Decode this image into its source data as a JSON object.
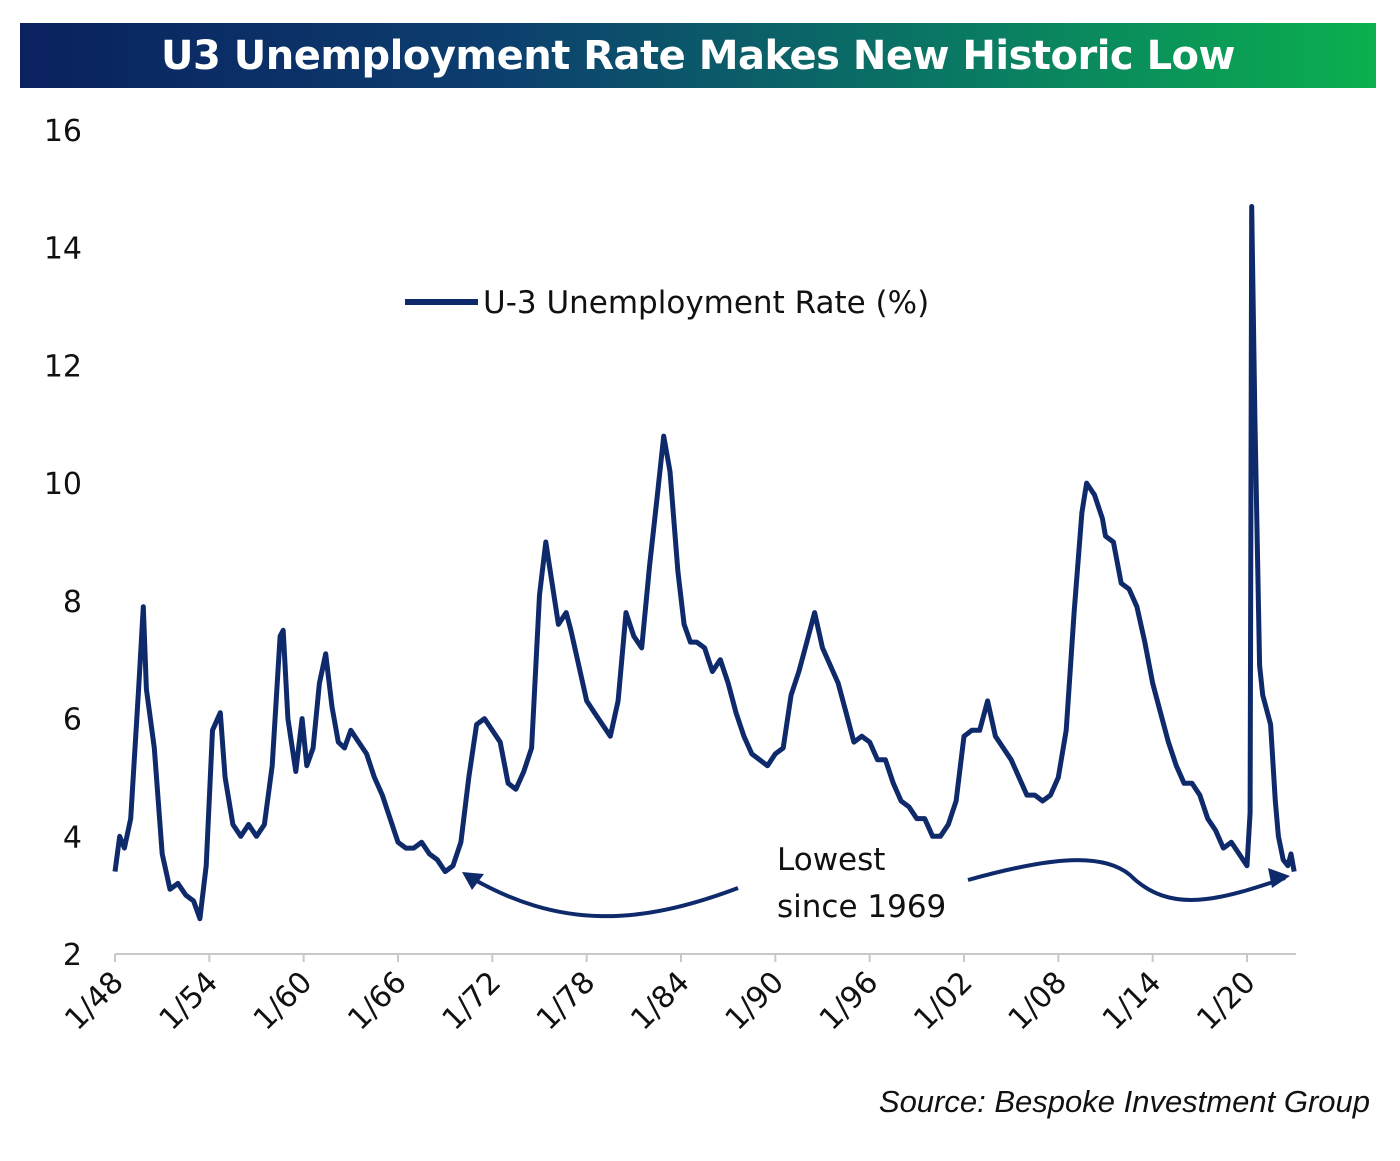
{
  "chart_data": {
    "type": "line",
    "title": "U3 Unemployment Rate Makes New Historic Low",
    "xlabel": "",
    "ylabel": "",
    "ylim": [
      2,
      16
    ],
    "xlim": [
      1948,
      2023
    ],
    "yticks": [
      "2",
      "4",
      "6",
      "8",
      "10",
      "12",
      "14",
      "16"
    ],
    "xticks": [
      {
        "label": "1/48",
        "year": 1948
      },
      {
        "label": "1/54",
        "year": 1954
      },
      {
        "label": "1/60",
        "year": 1960
      },
      {
        "label": "1/66",
        "year": 1966
      },
      {
        "label": "1/72",
        "year": 1972
      },
      {
        "label": "1/78",
        "year": 1978
      },
      {
        "label": "1/84",
        "year": 1984
      },
      {
        "label": "1/90",
        "year": 1990
      },
      {
        "label": "1/96",
        "year": 1996
      },
      {
        "label": "1/02",
        "year": 2002
      },
      {
        "label": "1/08",
        "year": 2008
      },
      {
        "label": "1/14",
        "year": 2014
      },
      {
        "label": "1/20",
        "year": 2020
      }
    ],
    "grid": false,
    "legend": {
      "position": "top-center",
      "entries": [
        "U-3 Unemployment Rate (%)"
      ]
    },
    "series": [
      {
        "name": "U-3 Unemployment Rate (%)",
        "color": "#0f2a6b",
        "x": [
          1948.0,
          1948.3,
          1948.6,
          1949.0,
          1949.5,
          1949.8,
          1950.0,
          1950.5,
          1951.0,
          1951.5,
          1952.0,
          1952.5,
          1953.0,
          1953.4,
          1953.8,
          1954.2,
          1954.7,
          1955.0,
          1955.5,
          1956.0,
          1956.5,
          1957.0,
          1957.5,
          1958.0,
          1958.5,
          1958.7,
          1959.0,
          1959.5,
          1959.9,
          1960.2,
          1960.6,
          1961.0,
          1961.4,
          1961.8,
          1962.2,
          1962.6,
          1963.0,
          1963.5,
          1964.0,
          1964.5,
          1965.0,
          1965.5,
          1966.0,
          1966.5,
          1967.0,
          1967.5,
          1968.0,
          1968.5,
          1969.0,
          1969.5,
          1970.0,
          1970.5,
          1971.0,
          1971.5,
          1972.0,
          1972.5,
          1973.0,
          1973.5,
          1974.0,
          1974.5,
          1975.0,
          1975.4,
          1975.8,
          1976.2,
          1976.7,
          1977.0,
          1977.5,
          1978.0,
          1978.5,
          1979.0,
          1979.5,
          1980.0,
          1980.5,
          1981.0,
          1981.5,
          1982.0,
          1982.5,
          1982.9,
          1983.3,
          1983.8,
          1984.2,
          1984.6,
          1985.0,
          1985.5,
          1986.0,
          1986.5,
          1987.0,
          1987.5,
          1988.0,
          1988.5,
          1989.0,
          1989.5,
          1990.0,
          1990.5,
          1991.0,
          1991.5,
          1992.0,
          1992.5,
          1993.0,
          1993.5,
          1994.0,
          1994.5,
          1995.0,
          1995.5,
          1996.0,
          1996.5,
          1997.0,
          1997.5,
          1998.0,
          1998.5,
          1999.0,
          1999.5,
          2000.0,
          2000.5,
          2001.0,
          2001.5,
          2002.0,
          2002.5,
          2003.0,
          2003.5,
          2004.0,
          2004.5,
          2005.0,
          2005.5,
          2006.0,
          2006.5,
          2007.0,
          2007.5,
          2008.0,
          2008.5,
          2009.0,
          2009.5,
          2009.8,
          2010.3,
          2010.8,
          2011.0,
          2011.5,
          2012.0,
          2012.5,
          2013.0,
          2013.5,
          2014.0,
          2014.5,
          2015.0,
          2015.5,
          2016.0,
          2016.5,
          2017.0,
          2017.5,
          2018.0,
          2018.5,
          2019.0,
          2019.5,
          2020.0,
          2020.2,
          2020.3,
          2020.5,
          2020.8,
          2021.0,
          2021.5,
          2021.8,
          2022.0,
          2022.3,
          2022.6,
          2022.8,
          2023.0
        ],
        "values": [
          3.4,
          4.0,
          3.8,
          4.3,
          6.5,
          7.9,
          6.5,
          5.5,
          3.7,
          3.1,
          3.2,
          3.0,
          2.9,
          2.6,
          3.5,
          5.8,
          6.1,
          5.0,
          4.2,
          4.0,
          4.2,
          4.0,
          4.2,
          5.2,
          7.4,
          7.5,
          6.0,
          5.1,
          6.0,
          5.2,
          5.5,
          6.6,
          7.1,
          6.2,
          5.6,
          5.5,
          5.8,
          5.6,
          5.4,
          5.0,
          4.7,
          4.3,
          3.9,
          3.8,
          3.8,
          3.9,
          3.7,
          3.6,
          3.4,
          3.5,
          3.9,
          5.0,
          5.9,
          6.0,
          5.8,
          5.6,
          4.9,
          4.8,
          5.1,
          5.5,
          8.1,
          9.0,
          8.3,
          7.6,
          7.8,
          7.5,
          6.9,
          6.3,
          6.1,
          5.9,
          5.7,
          6.3,
          7.8,
          7.4,
          7.2,
          8.6,
          9.8,
          10.8,
          10.2,
          8.5,
          7.6,
          7.3,
          7.3,
          7.2,
          6.8,
          7.0,
          6.6,
          6.1,
          5.7,
          5.4,
          5.3,
          5.2,
          5.4,
          5.5,
          6.4,
          6.8,
          7.3,
          7.8,
          7.2,
          6.9,
          6.6,
          6.1,
          5.6,
          5.7,
          5.6,
          5.3,
          5.3,
          4.9,
          4.6,
          4.5,
          4.3,
          4.3,
          4.0,
          4.0,
          4.2,
          4.6,
          5.7,
          5.8,
          5.8,
          6.3,
          5.7,
          5.5,
          5.3,
          5.0,
          4.7,
          4.7,
          4.6,
          4.7,
          5.0,
          5.8,
          7.8,
          9.5,
          10.0,
          9.8,
          9.4,
          9.1,
          9.0,
          8.3,
          8.2,
          7.9,
          7.3,
          6.6,
          6.1,
          5.6,
          5.2,
          4.9,
          4.9,
          4.7,
          4.3,
          4.1,
          3.8,
          3.9,
          3.7,
          3.5,
          4.4,
          14.7,
          11.1,
          6.9,
          6.4,
          5.9,
          4.6,
          4.0,
          3.6,
          3.5,
          3.7,
          3.4
        ]
      }
    ],
    "annotations": [
      {
        "text_line1": "Lowest",
        "text_line2": "since 1969"
      }
    ]
  },
  "source": "Source: Bespoke Investment Group"
}
